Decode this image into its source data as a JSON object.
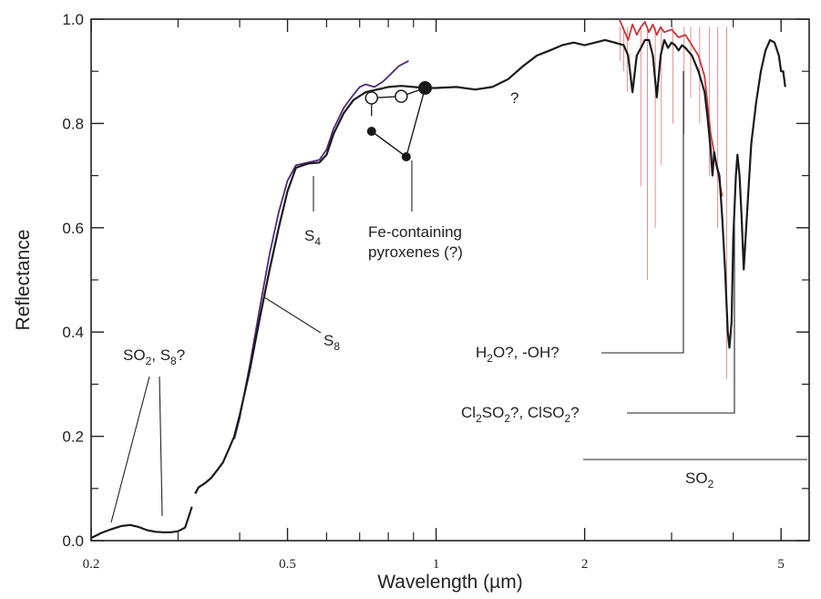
{
  "chart_data": {
    "type": "line",
    "title": "",
    "xlabel": "Wavelength (µm)",
    "ylabel": "Reflectance",
    "xscale": "log",
    "xlim": [
      0.2,
      5.7
    ],
    "ylim": [
      0.0,
      1.0
    ],
    "x_tick_labels": [
      {
        "value": 0.2,
        "label": "0.2"
      },
      {
        "value": 0.5,
        "label": "0.5"
      },
      {
        "value": 1,
        "label": "1"
      },
      {
        "value": 2,
        "label": "2"
      },
      {
        "value": 5,
        "label": "5"
      }
    ],
    "x_minor_ticks": [
      0.3,
      0.4,
      0.6,
      0.7,
      0.8,
      0.9,
      3,
      4
    ],
    "y_ticks": [
      {
        "value": 0.0,
        "label": "0.0"
      },
      {
        "value": 0.2,
        "label": "0.2"
      },
      {
        "value": 0.4,
        "label": "0.4"
      },
      {
        "value": 0.6,
        "label": "0.6"
      },
      {
        "value": 0.8,
        "label": "0.8"
      },
      {
        "value": 1.0,
        "label": "1.0"
      }
    ],
    "y_minor_ticks": [
      0.1,
      0.3,
      0.5,
      0.7,
      0.9
    ],
    "grid": false,
    "series": [
      {
        "color": "#1a1a1a",
        "points": [
          [
            0.2,
            0.005
          ],
          [
            0.205,
            0.01
          ],
          [
            0.21,
            0.015
          ],
          [
            0.22,
            0.022
          ],
          [
            0.23,
            0.028
          ],
          [
            0.24,
            0.03
          ],
          [
            0.25,
            0.026
          ],
          [
            0.26,
            0.02
          ],
          [
            0.27,
            0.017
          ],
          [
            0.28,
            0.016
          ],
          [
            0.29,
            0.016
          ],
          [
            0.3,
            0.018
          ],
          [
            0.31,
            0.025
          ],
          [
            0.315,
            0.045
          ],
          [
            0.32,
            0.065
          ],
          null,
          [
            0.325,
            0.09
          ],
          [
            0.33,
            0.102
          ],
          [
            0.34,
            0.11
          ],
          [
            0.35,
            0.12
          ],
          [
            0.36,
            0.135
          ],
          [
            0.37,
            0.15
          ],
          [
            0.38,
            0.175
          ],
          [
            0.39,
            0.2
          ],
          [
            0.4,
            0.24
          ],
          [
            0.42,
            0.33
          ],
          [
            0.44,
            0.43
          ],
          [
            0.46,
            0.52
          ],
          [
            0.48,
            0.6
          ],
          [
            0.5,
            0.67
          ],
          [
            0.52,
            0.715
          ],
          [
            0.55,
            0.723
          ],
          [
            0.58,
            0.725
          ],
          [
            0.6,
            0.74
          ],
          [
            0.62,
            0.78
          ],
          [
            0.65,
            0.82
          ],
          [
            0.68,
            0.845
          ],
          [
            0.72,
            0.86
          ],
          [
            0.76,
            0.865
          ],
          [
            0.8,
            0.87
          ],
          [
            0.85,
            0.872
          ],
          [
            0.9,
            0.87
          ],
          [
            0.95,
            0.868
          ],
          [
            1.0,
            0.868
          ],
          [
            1.1,
            0.87
          ],
          [
            1.2,
            0.865
          ],
          [
            1.3,
            0.87
          ],
          [
            1.4,
            0.885
          ],
          [
            1.5,
            0.91
          ],
          [
            1.6,
            0.93
          ],
          [
            1.7,
            0.94
          ],
          [
            1.8,
            0.95
          ],
          [
            1.9,
            0.955
          ],
          [
            2.0,
            0.95
          ],
          [
            2.1,
            0.955
          ],
          [
            2.2,
            0.96
          ],
          [
            2.3,
            0.955
          ],
          [
            2.4,
            0.95
          ],
          [
            2.45,
            0.93
          ],
          [
            2.5,
            0.86
          ],
          [
            2.55,
            0.93
          ],
          [
            2.6,
            0.945
          ],
          [
            2.65,
            0.96
          ],
          [
            2.7,
            0.96
          ],
          [
            2.75,
            0.93
          ],
          [
            2.8,
            0.85
          ],
          [
            2.85,
            0.93
          ],
          [
            2.9,
            0.96
          ],
          [
            2.95,
            0.945
          ],
          [
            3.0,
            0.955
          ],
          [
            3.05,
            0.95
          ],
          [
            3.1,
            0.94
          ],
          [
            3.15,
            0.95
          ],
          [
            3.2,
            0.945
          ],
          [
            3.3,
            0.93
          ],
          [
            3.4,
            0.9
          ],
          [
            3.5,
            0.86
          ],
          [
            3.55,
            0.81
          ],
          [
            3.6,
            0.75
          ],
          [
            3.63,
            0.7
          ],
          [
            3.66,
            0.745
          ],
          [
            3.7,
            0.72
          ],
          [
            3.75,
            0.7
          ],
          [
            3.8,
            0.62
          ],
          [
            3.85,
            0.52
          ],
          [
            3.9,
            0.4
          ],
          [
            3.93,
            0.37
          ],
          [
            3.97,
            0.42
          ],
          [
            4.0,
            0.58
          ],
          [
            4.05,
            0.7
          ],
          [
            4.08,
            0.74
          ],
          [
            4.12,
            0.7
          ],
          [
            4.16,
            0.62
          ],
          [
            4.2,
            0.52
          ],
          [
            4.25,
            0.6
          ],
          [
            4.35,
            0.76
          ],
          [
            4.45,
            0.84
          ],
          [
            4.55,
            0.9
          ],
          [
            4.65,
            0.94
          ],
          [
            4.75,
            0.96
          ],
          [
            4.85,
            0.955
          ],
          [
            4.95,
            0.93
          ],
          [
            5.0,
            0.9
          ],
          [
            5.05,
            0.9
          ],
          [
            5.1,
            0.87
          ]
        ]
      },
      {
        "color": "#4b2a7a",
        "points": [
          [
            0.39,
            0.195
          ],
          [
            0.4,
            0.235
          ],
          [
            0.42,
            0.34
          ],
          [
            0.44,
            0.45
          ],
          [
            0.46,
            0.55
          ],
          [
            0.48,
            0.63
          ],
          [
            0.5,
            0.69
          ],
          [
            0.52,
            0.72
          ],
          [
            0.55,
            0.725
          ],
          [
            0.58,
            0.73
          ],
          [
            0.6,
            0.75
          ],
          [
            0.62,
            0.79
          ],
          [
            0.65,
            0.83
          ],
          [
            0.68,
            0.855
          ],
          [
            0.7,
            0.87
          ],
          [
            0.72,
            0.875
          ],
          [
            0.75,
            0.87
          ],
          [
            0.78,
            0.88
          ],
          [
            0.8,
            0.89
          ],
          [
            0.82,
            0.9
          ],
          [
            0.84,
            0.91
          ],
          [
            0.86,
            0.915
          ],
          [
            0.88,
            0.92
          ]
        ]
      },
      {
        "color": "#c9373b",
        "points": [
          [
            2.35,
            1.0
          ],
          [
            2.4,
            0.98
          ],
          [
            2.45,
            0.96
          ],
          [
            2.5,
            0.99
          ],
          [
            2.55,
            0.97
          ],
          [
            2.6,
            0.985
          ],
          [
            2.65,
            0.995
          ],
          [
            2.7,
            0.975
          ],
          [
            2.75,
            0.99
          ],
          [
            2.8,
            0.97
          ],
          [
            2.85,
            0.985
          ],
          [
            2.9,
            0.975
          ],
          [
            3.0,
            0.98
          ],
          [
            3.1,
            0.965
          ],
          [
            3.2,
            0.97
          ],
          [
            3.3,
            0.95
          ],
          [
            3.4,
            0.93
          ],
          [
            3.5,
            0.89
          ],
          [
            3.6,
            0.78
          ],
          [
            3.7,
            0.72
          ],
          [
            3.8,
            0.66
          ]
        ]
      }
    ],
    "noise_spikes": {
      "color": "#c9373b",
      "x": [
        2.36,
        2.4,
        2.44,
        2.6,
        2.68,
        2.78,
        2.86,
        3.02,
        3.18,
        3.28,
        3.42,
        3.58,
        3.72,
        3.88
      ],
      "y_low": [
        0.92,
        0.9,
        0.86,
        0.68,
        0.5,
        0.6,
        0.72,
        0.8,
        0.78,
        0.85,
        0.8,
        0.7,
        0.6,
        0.31
      ]
    },
    "markers": {
      "line_color": "#1a1a1a",
      "open": [
        [
          0.74,
          0.849
        ],
        [
          0.85,
          0.852
        ]
      ],
      "filled_small": [
        [
          0.74,
          0.785
        ],
        [
          0.87,
          0.736
        ]
      ],
      "filled_large": [
        [
          0.95,
          0.868
        ]
      ],
      "connections": [
        [
          [
            0.74,
            0.849
          ],
          [
            0.85,
            0.852
          ],
          [
            0.95,
            0.868
          ]
        ],
        [
          [
            0.74,
            0.785
          ],
          [
            0.87,
            0.736
          ],
          [
            0.95,
            0.868
          ]
        ]
      ]
    },
    "annotations": {
      "so2_s8": {
        "text": "SO2, S8?",
        "x": 0.24,
        "y": 0.34
      },
      "s4": {
        "text": "S4",
        "x": 0.56,
        "y": 0.585
      },
      "s8": {
        "text": "S8",
        "x": 0.6,
        "y": 0.375
      },
      "fe_pyroxenes": {
        "line1": "Fe-containing",
        "line2": "pyroxenes (?)",
        "x": 0.68,
        "y": 0.595
      },
      "question": {
        "text": "?",
        "x": 1.33,
        "y": 0.85
      },
      "h2o_oh": {
        "text": "H2O?, -OH?",
        "x": 1.52,
        "y": 0.355
      },
      "cl2so2": {
        "text": "Cl2SO2?, ClSO2?",
        "x": 1.22,
        "y": 0.235
      },
      "so2_band": {
        "text": "SO2",
        "x": 3.25,
        "y": 0.115,
        "x_start": 1.95,
        "x_end": 5.7,
        "y_line": 0.155
      }
    }
  }
}
